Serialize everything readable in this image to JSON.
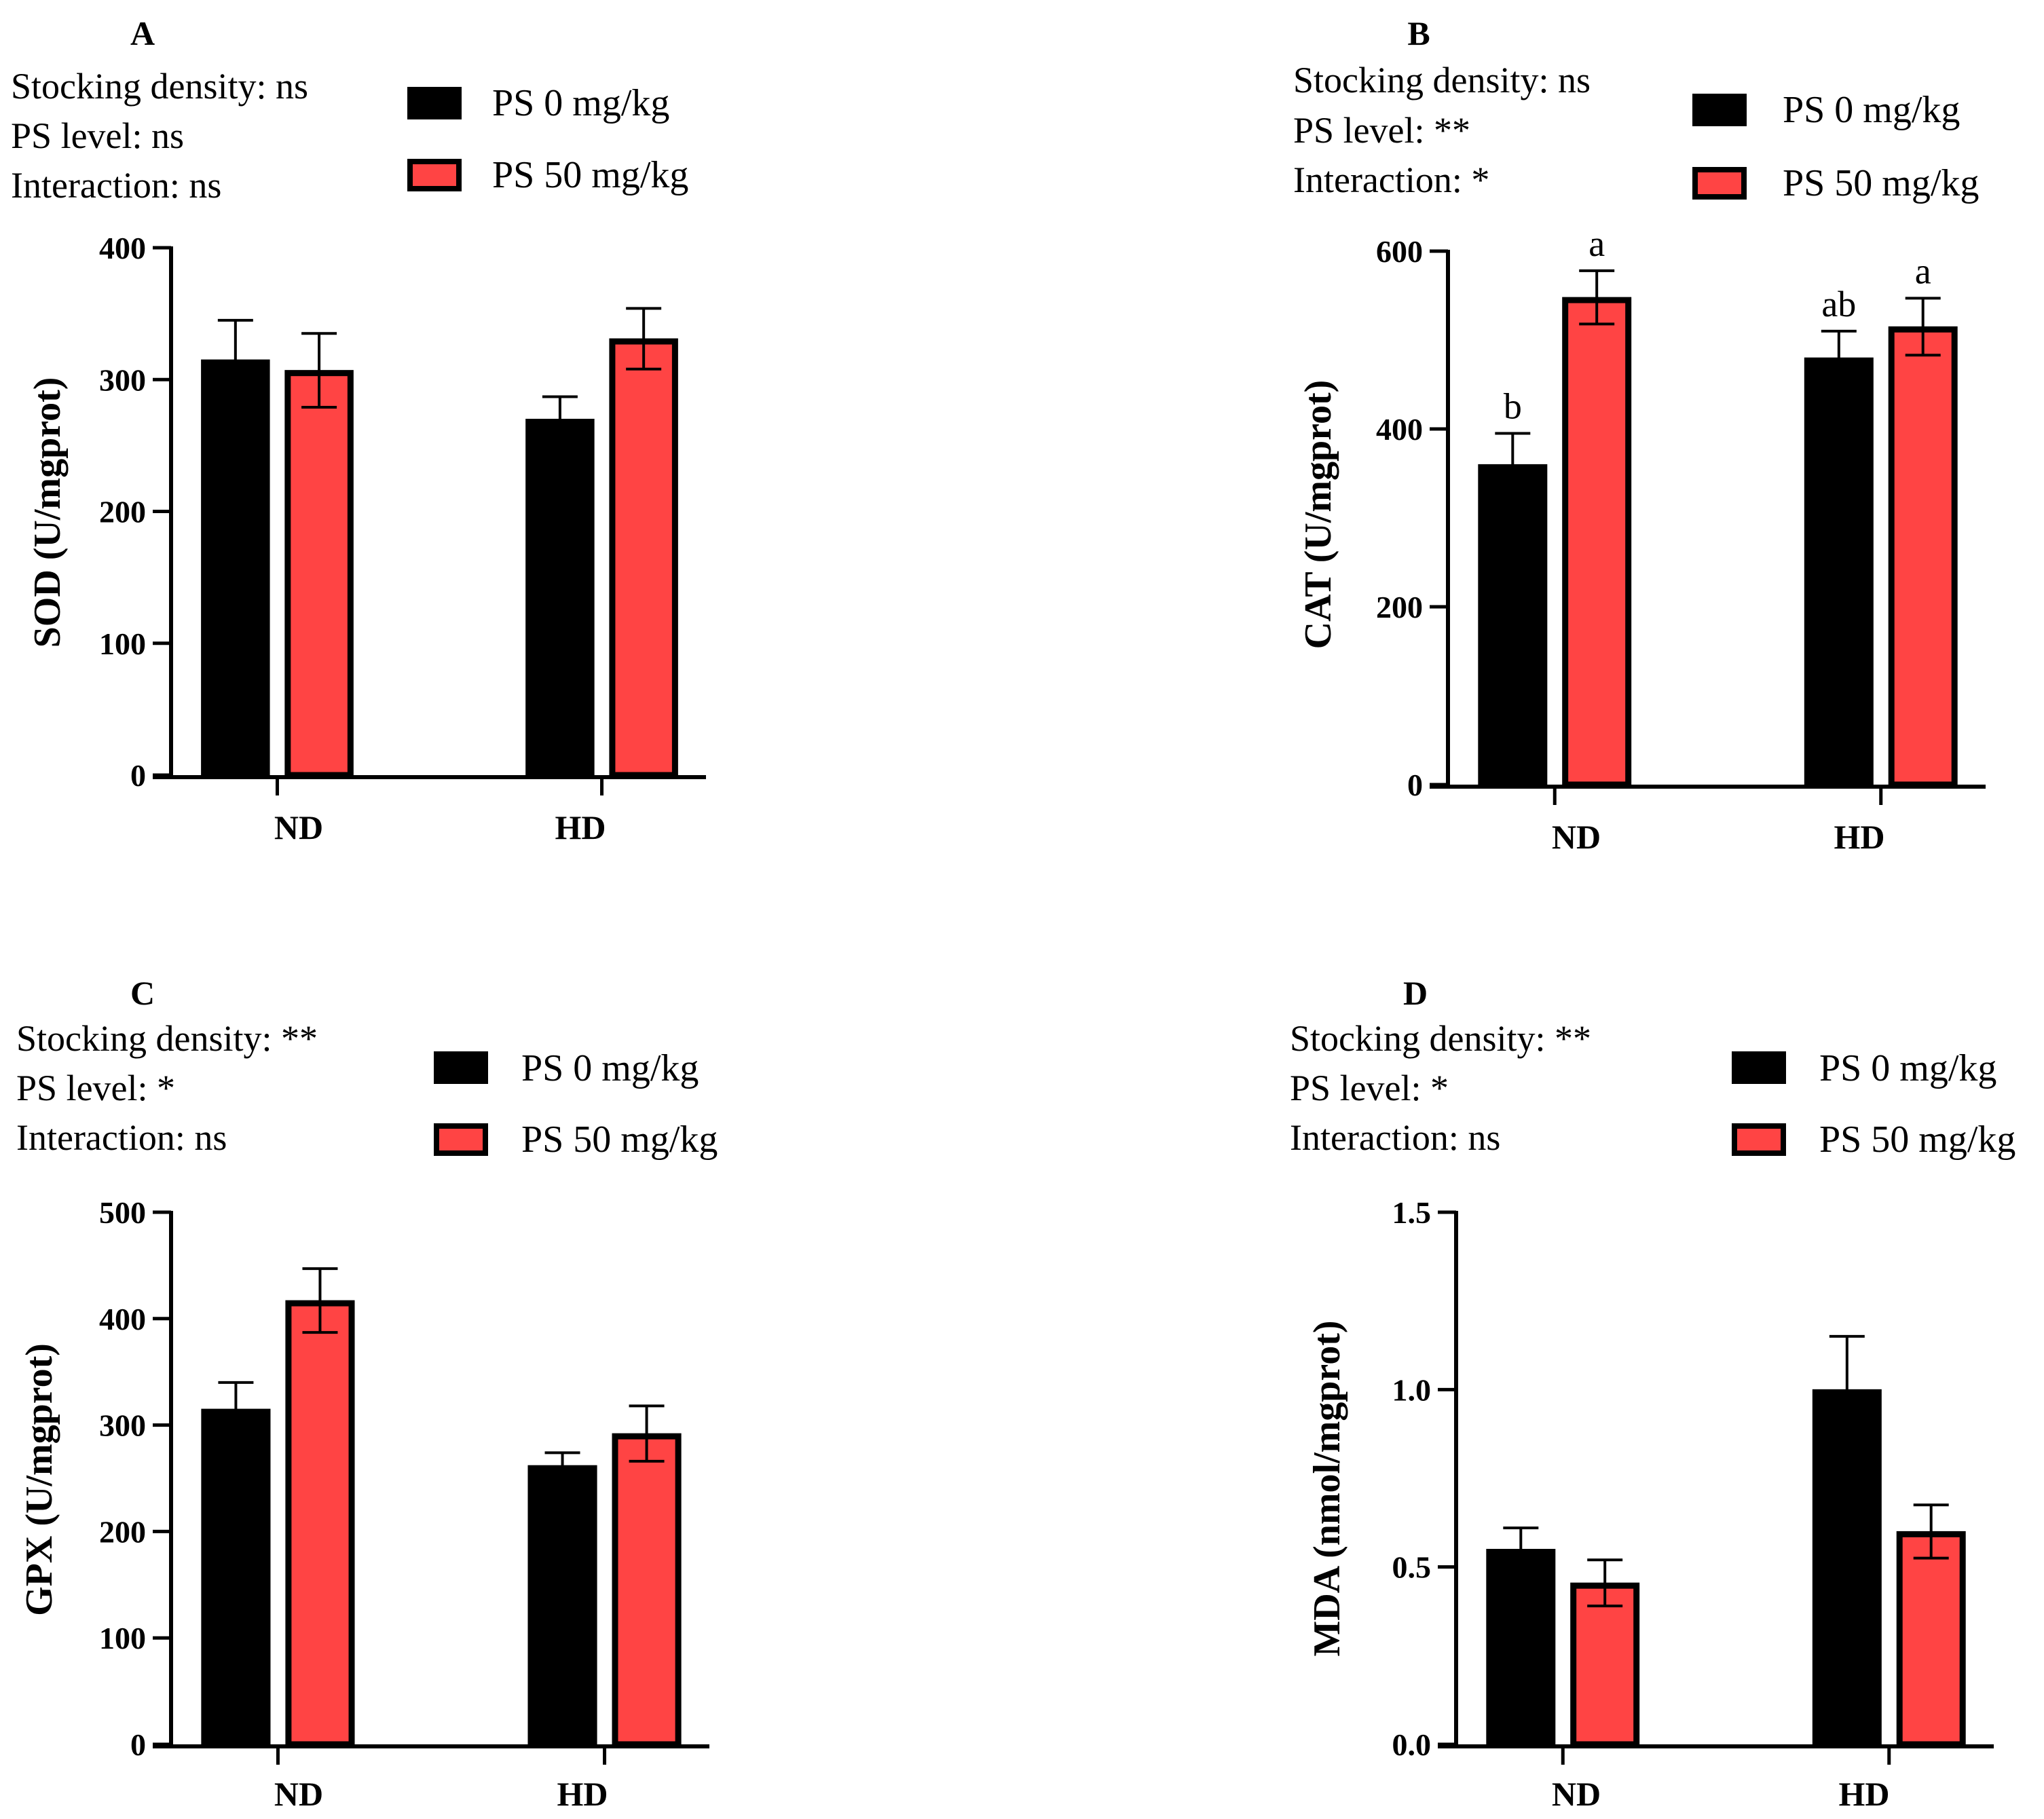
{
  "figure": {
    "series_names": [
      "PS 0 mg/kg",
      "PS 50 mg/kg"
    ],
    "series_colors": [
      "#000000",
      "#ff4444"
    ]
  },
  "chart_data": [
    {
      "panel": "A",
      "type": "bar",
      "stats": [
        "Stocking density: ns",
        "PS level: ns",
        "Interaction: ns"
      ],
      "categories": [
        "ND",
        "HD"
      ],
      "series": [
        {
          "name": "PS 0 mg/kg",
          "values": [
            315,
            270
          ],
          "errors": [
            30,
            17
          ],
          "letters": [
            "",
            ""
          ]
        },
        {
          "name": "PS 50 mg/kg",
          "values": [
            307,
            331
          ],
          "errors": [
            28,
            23
          ],
          "letters": [
            "",
            ""
          ]
        }
      ],
      "ylabel": "SOD (U/mgprot)",
      "ylim": [
        0,
        400
      ],
      "yticks": [
        0,
        100,
        200,
        300,
        400
      ],
      "ytick_labels": [
        "0",
        "100",
        "200",
        "300",
        "400"
      ],
      "legend": "top-right"
    },
    {
      "panel": "B",
      "type": "bar",
      "stats": [
        "Stocking density: ns",
        "PS level: **",
        "Interaction: *"
      ],
      "categories": [
        "ND",
        "HD"
      ],
      "series": [
        {
          "name": "PS 0 mg/kg",
          "values": [
            360,
            480
          ],
          "errors": [
            35,
            30
          ],
          "letters": [
            "b",
            "ab"
          ]
        },
        {
          "name": "PS 50 mg/kg",
          "values": [
            548,
            515
          ],
          "errors": [
            30,
            32
          ],
          "letters": [
            "a",
            "a"
          ]
        }
      ],
      "ylabel": "CAT (U/mgprot)",
      "ylim": [
        0,
        600
      ],
      "yticks": [
        0,
        200,
        400,
        600
      ],
      "ytick_labels": [
        "0",
        "200",
        "400",
        "600"
      ],
      "legend": "top-right"
    },
    {
      "panel": "C",
      "type": "bar",
      "stats": [
        "Stocking density: **",
        "PS level: *",
        "Interaction: ns"
      ],
      "categories": [
        "ND",
        "HD"
      ],
      "series": [
        {
          "name": "PS 0 mg/kg",
          "values": [
            315,
            262
          ],
          "errors": [
            25,
            12
          ],
          "letters": [
            "",
            ""
          ]
        },
        {
          "name": "PS 50 mg/kg",
          "values": [
            417,
            292
          ],
          "errors": [
            30,
            26
          ],
          "letters": [
            "",
            ""
          ]
        }
      ],
      "ylabel": "GPX (U/mgprot)",
      "ylim": [
        0,
        500
      ],
      "yticks": [
        0,
        100,
        200,
        300,
        400,
        500
      ],
      "ytick_labels": [
        "0",
        "100",
        "200",
        "300",
        "400",
        "500"
      ],
      "legend": "top-right"
    },
    {
      "panel": "D",
      "type": "bar",
      "stats": [
        "Stocking density: **",
        "PS level: *",
        "Interaction: ns"
      ],
      "categories": [
        "ND",
        "HD"
      ],
      "series": [
        {
          "name": "PS 0 mg/kg",
          "values": [
            0.55,
            1.0
          ],
          "errors": [
            0.06,
            0.15
          ],
          "letters": [
            "",
            ""
          ]
        },
        {
          "name": "PS 50 mg/kg",
          "values": [
            0.455,
            0.6
          ],
          "errors": [
            0.065,
            0.075
          ],
          "letters": [
            "",
            ""
          ]
        }
      ],
      "ylabel": "MDA (nmol/mgprot)",
      "ylim": [
        0,
        1.5
      ],
      "yticks": [
        0,
        0.5,
        1.0,
        1.5
      ],
      "ytick_labels": [
        "0.0",
        "0.5",
        "1.0",
        "1.5"
      ],
      "legend": "top-right"
    }
  ]
}
